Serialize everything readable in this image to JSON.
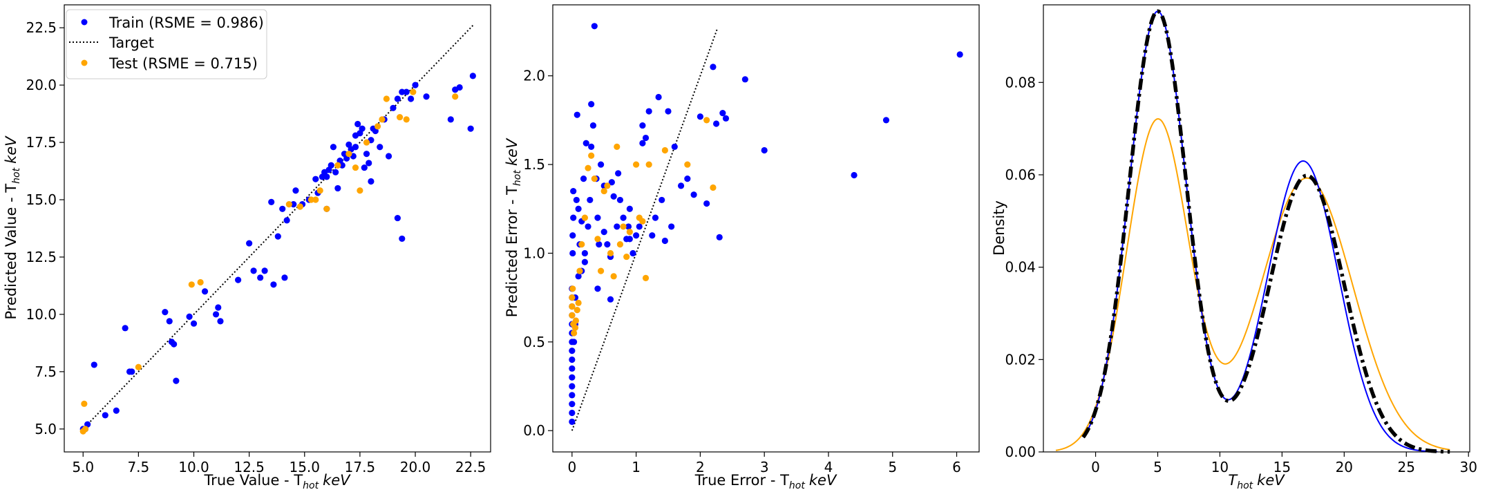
{
  "chart_data": [
    {
      "type": "scatter",
      "xlabel": "True Value - T",
      "xlabel_sub": "hot",
      "xlabel_unit": "keV",
      "ylabel": "Predicted Value - T",
      "ylabel_sub": "hot",
      "ylabel_unit": "keV",
      "xlim": [
        4.15,
        23.4
      ],
      "ylim": [
        4.0,
        23.5
      ],
      "xticks": [
        5.0,
        7.5,
        10.0,
        12.5,
        15.0,
        17.5,
        20.0,
        22.5
      ],
      "xtick_labels": [
        "5.0",
        "7.5",
        "10.0",
        "12.5",
        "15.0",
        "17.5",
        "20.0",
        "22.5"
      ],
      "yticks": [
        5.0,
        7.5,
        10.0,
        12.5,
        15.0,
        17.5,
        20.0,
        22.5
      ],
      "ytick_labels": [
        "5.0",
        "7.5",
        "10.0",
        "12.5",
        "15.0",
        "17.5",
        "20.0",
        "22.5"
      ],
      "legend": {
        "placement": "top-left",
        "entries": [
          {
            "label": "Train (RSME = 0.986)",
            "marker": "dot",
            "color": "#0000ff"
          },
          {
            "label": "Target",
            "marker": "dotted-line",
            "color": "#000000"
          },
          {
            "label": "Test (RSME = 0.715)",
            "marker": "dot",
            "color": "#ffa500"
          }
        ]
      },
      "target_line": {
        "x": [
          5.0,
          22.6
        ],
        "y": [
          5.0,
          22.6
        ]
      },
      "series": [
        {
          "name": "Train (RSME = 0.986)",
          "color": "#0000ff",
          "x": [
            5.0,
            5.1,
            5.2,
            5.5,
            6.0,
            6.5,
            6.9,
            7.1,
            7.2,
            8.7,
            8.9,
            9.0,
            9.1,
            9.2,
            9.8,
            10.0,
            10.5,
            11.0,
            11.1,
            11.2,
            12.0,
            12.5,
            12.7,
            13.0,
            13.2,
            13.5,
            13.6,
            13.8,
            14.0,
            14.1,
            14.2,
            14.5,
            14.6,
            14.9,
            15.2,
            15.5,
            15.6,
            15.8,
            15.9,
            16.0,
            16.1,
            16.2,
            16.3,
            16.4,
            16.5,
            16.6,
            16.7,
            16.8,
            16.9,
            17.0,
            17.1,
            17.2,
            17.3,
            17.4,
            17.5,
            17.6,
            17.7,
            17.8,
            17.9,
            18.0,
            18.1,
            18.2,
            18.4,
            18.6,
            18.8,
            19.0,
            19.2,
            19.4,
            19.6,
            19.8,
            20.0,
            20.5,
            21.6,
            21.8,
            22.0,
            22.5,
            22.6,
            16.0,
            17.3,
            18.0,
            19.2,
            19.4
          ],
          "y": [
            5.0,
            5.0,
            5.2,
            7.8,
            5.6,
            5.8,
            9.4,
            7.5,
            7.5,
            10.1,
            9.7,
            8.8,
            8.7,
            7.1,
            9.9,
            9.6,
            11.0,
            10.0,
            10.3,
            9.7,
            11.5,
            13.1,
            11.9,
            11.6,
            11.9,
            14.9,
            11.3,
            13.4,
            14.6,
            11.6,
            14.1,
            14.8,
            15.4,
            14.8,
            15.0,
            15.9,
            15.3,
            16.0,
            16.2,
            16.0,
            16.3,
            16.5,
            17.3,
            16.2,
            15.5,
            16.7,
            16.5,
            17.0,
            16.8,
            17.4,
            17.2,
            16.9,
            17.8,
            18.3,
            17.9,
            18.1,
            16.4,
            17.0,
            16.6,
            17.6,
            18.1,
            18.0,
            17.3,
            18.5,
            16.9,
            19.0,
            19.4,
            19.7,
            19.7,
            19.4,
            20.0,
            19.5,
            18.5,
            19.8,
            19.9,
            18.1,
            20.4,
            14.6,
            17.3,
            15.8,
            14.2,
            13.3
          ]
        },
        {
          "name": "Test (RSME = 0.715)",
          "color": "#ffa500",
          "x": [
            5.0,
            5.1,
            7.5,
            9.9,
            10.3,
            14.3,
            14.8,
            15.3,
            15.5,
            15.7,
            16.0,
            16.5,
            17.0,
            17.3,
            17.5,
            17.8,
            18.3,
            18.5,
            18.7,
            19.3,
            19.6,
            19.9,
            21.8,
            5.05
          ],
          "y": [
            4.9,
            5.0,
            7.7,
            11.3,
            11.4,
            14.8,
            14.7,
            15.0,
            15.0,
            15.4,
            14.6,
            16.5,
            17.0,
            16.4,
            15.4,
            17.5,
            18.2,
            18.5,
            19.4,
            18.6,
            18.5,
            19.7,
            19.5,
            6.1
          ]
        }
      ]
    },
    {
      "type": "scatter",
      "xlabel": "True Error - T",
      "xlabel_sub": "hot",
      "xlabel_unit": "keV",
      "ylabel": "Predicted Error - T",
      "ylabel_sub": "hot",
      "ylabel_unit": "keV",
      "xlim": [
        -0.3,
        6.35
      ],
      "ylim": [
        -0.12,
        2.4
      ],
      "xticks": [
        0,
        1,
        2,
        3,
        4,
        5,
        6
      ],
      "xtick_labels": [
        "0",
        "1",
        "2",
        "3",
        "4",
        "5",
        "6"
      ],
      "yticks": [
        0.0,
        0.5,
        1.0,
        1.5,
        2.0
      ],
      "ytick_labels": [
        "0.0",
        "0.5",
        "1.0",
        "1.5",
        "2.0"
      ],
      "target_line": {
        "x": [
          0.0,
          2.27
        ],
        "y": [
          0.0,
          2.27
        ]
      },
      "series": [
        {
          "name": "Train",
          "color": "#0000ff",
          "x": [
            0.0,
            0.0,
            0.0,
            0.0,
            0.0,
            0.0,
            0.0,
            0.0,
            0.0,
            0.0,
            0.0,
            0.0,
            0.0,
            0.0,
            0.0,
            0.0,
            0.01,
            0.01,
            0.02,
            0.02,
            0.03,
            0.05,
            0.05,
            0.07,
            0.08,
            0.1,
            0.12,
            0.15,
            0.18,
            0.2,
            0.22,
            0.25,
            0.28,
            0.3,
            0.33,
            0.35,
            0.38,
            0.4,
            0.42,
            0.45,
            0.5,
            0.5,
            0.55,
            0.6,
            0.62,
            0.65,
            0.7,
            0.72,
            0.75,
            0.8,
            0.85,
            0.88,
            0.9,
            0.95,
            1.0,
            1.05,
            1.1,
            1.15,
            1.2,
            1.3,
            1.35,
            1.4,
            1.45,
            1.5,
            1.55,
            1.6,
            1.7,
            1.8,
            1.9,
            2.0,
            2.1,
            2.2,
            2.25,
            2.3,
            2.35,
            2.4,
            2.7,
            3.0,
            4.4,
            4.9,
            6.05,
            0.4,
            0.3,
            0.2,
            0.15,
            0.1,
            0.6,
            0.9,
            1.1,
            1.25
          ],
          "y": [
            0.05,
            0.1,
            0.15,
            0.2,
            0.25,
            0.3,
            0.35,
            0.4,
            0.45,
            0.5,
            0.55,
            0.6,
            0.65,
            0.7,
            0.75,
            0.8,
            1.0,
            1.1,
            1.2,
            1.35,
            0.5,
            0.6,
            0.75,
            1.3,
            1.78,
            1.25,
            1.05,
            0.9,
            1.42,
            1.0,
            1.62,
            1.15,
            1.3,
            1.84,
            1.72,
            2.28,
            1.42,
            1.2,
            1.05,
            1.5,
            1.38,
            1.12,
            1.05,
            0.98,
            1.4,
            1.32,
            1.15,
            1.45,
            1.3,
            1.2,
            1.08,
            1.15,
            1.25,
            1.0,
            1.1,
            1.15,
            1.72,
            1.65,
            1.8,
            1.2,
            1.88,
            1.3,
            1.07,
            1.8,
            1.15,
            1.6,
            1.38,
            1.42,
            1.33,
            1.77,
            1.28,
            2.05,
            1.73,
            1.09,
            1.79,
            1.76,
            1.98,
            1.58,
            1.44,
            1.75,
            2.12,
            0.8,
            1.6,
            0.95,
            1.18,
            0.87,
            0.74,
            1.08,
            1.62,
            1.1
          ]
        },
        {
          "name": "Test",
          "color": "#ffa500",
          "x": [
            0.0,
            0.0,
            0.0,
            0.01,
            0.02,
            0.03,
            0.05,
            0.06,
            0.08,
            0.1,
            0.12,
            0.15,
            0.2,
            0.25,
            0.3,
            0.4,
            0.45,
            0.5,
            0.55,
            0.6,
            0.7,
            0.75,
            0.8,
            0.85,
            0.9,
            1.0,
            1.05,
            1.1,
            1.15,
            1.2,
            1.45,
            1.8,
            2.1,
            2.2,
            0.65,
            0.35
          ],
          "y": [
            0.65,
            0.7,
            0.75,
            0.8,
            0.6,
            0.55,
            0.58,
            0.62,
            0.68,
            0.72,
            0.9,
            1.05,
            1.2,
            1.48,
            1.55,
            1.08,
            0.9,
            1.35,
            1.38,
            1.0,
            1.6,
            1.05,
            1.15,
            0.98,
            1.12,
            1.5,
            1.2,
            1.18,
            0.86,
            1.5,
            1.58,
            1.5,
            1.75,
            1.37,
            0.87,
            1.42
          ]
        }
      ]
    },
    {
      "type": "line",
      "xlabel": "T",
      "xlabel_sub": "hot",
      "xlabel_unit": "keV",
      "ylabel": "Density",
      "xlim": [
        -4.2,
        30.1
      ],
      "ylim": [
        0.0,
        0.0968
      ],
      "xticks": [
        0,
        5,
        10,
        15,
        20,
        25,
        30
      ],
      "xtick_labels": [
        "0",
        "5",
        "10",
        "15",
        "20",
        "25",
        "30"
      ],
      "yticks": [
        0.0,
        0.02,
        0.04,
        0.06,
        0.08
      ],
      "ytick_labels": [
        "0.00",
        "0.02",
        "0.04",
        "0.06",
        "0.08"
      ],
      "series": [
        {
          "name": "",
          "color": "#000000",
          "style": "dashdot",
          "mixture": [
            {
              "weight": 0.55,
              "mean": 5.0,
              "sd": 2.3
            },
            {
              "weight": 0.45,
              "mean": 17.0,
              "sd": 3.0
            }
          ],
          "x_range": [
            -1.0,
            28.5
          ]
        },
        {
          "name": "",
          "color": "#0000ff",
          "style": "solid",
          "mixture": [
            {
              "weight": 0.55,
              "mean": 5.0,
              "sd": 2.3
            },
            {
              "weight": 0.45,
              "mean": 16.7,
              "sd": 2.85
            }
          ],
          "x_range": [
            -1.0,
            27.5
          ]
        },
        {
          "name": "",
          "color": "#ffa500",
          "style": "solid",
          "mixture": [
            {
              "weight": 0.45,
              "mean": 5.0,
              "sd": 2.5
            },
            {
              "weight": 0.55,
              "mean": 17.0,
              "sd": 3.7
            }
          ],
          "x_range": [
            -3.2,
            28.5
          ]
        }
      ]
    }
  ]
}
